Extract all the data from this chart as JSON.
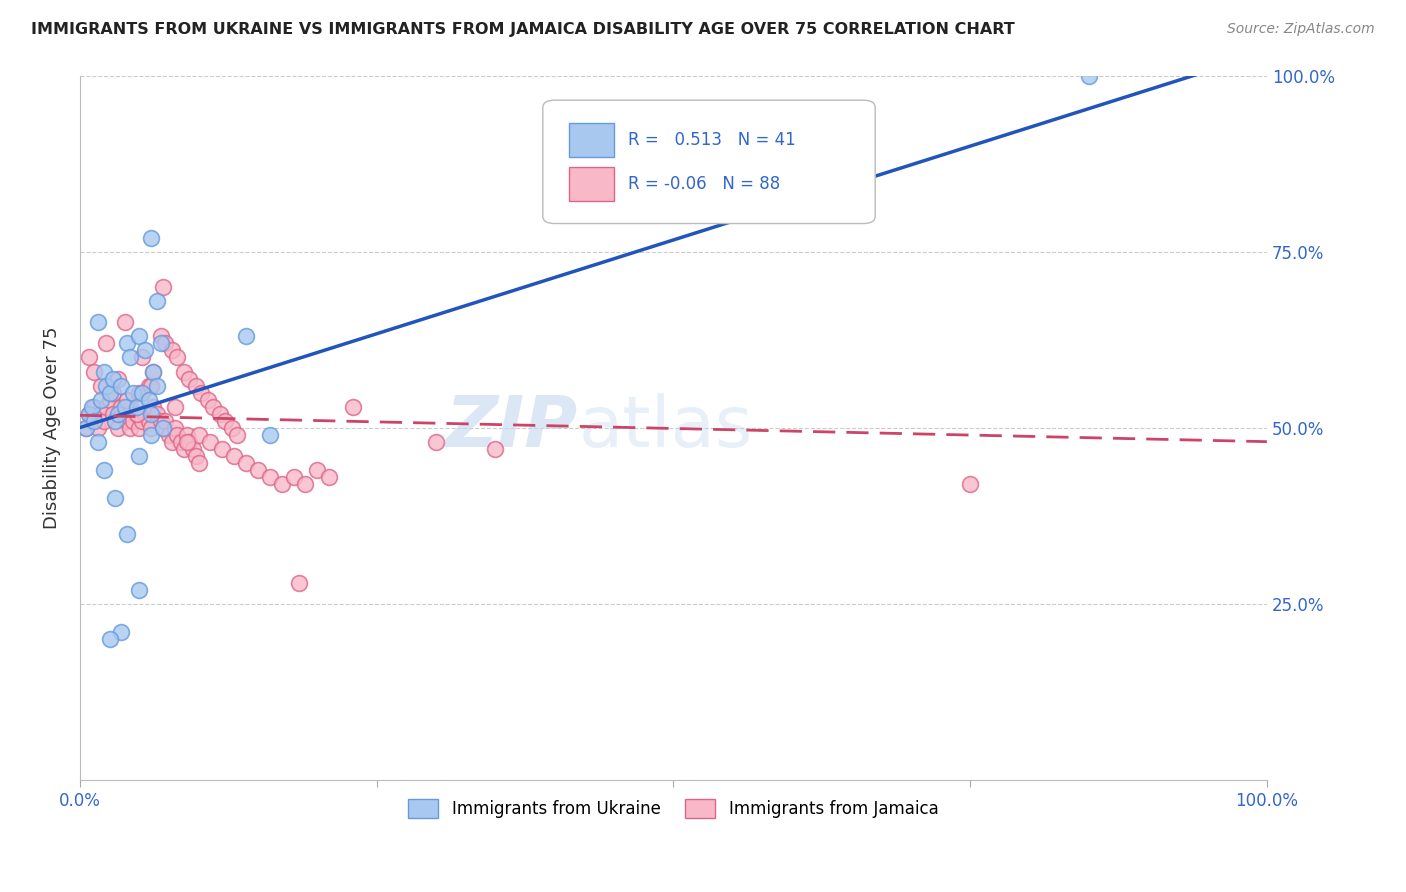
{
  "title": "IMMIGRANTS FROM UKRAINE VS IMMIGRANTS FROM JAMAICA DISABILITY AGE OVER 75 CORRELATION CHART",
  "source": "Source: ZipAtlas.com",
  "ylabel": "Disability Age Over 75",
  "xlim": [
    0,
    1.0
  ],
  "ylim": [
    0,
    1.0
  ],
  "ukraine_color": "#a8c8f0",
  "ukraine_edge_color": "#6699dd",
  "jamaica_color": "#f8b8c8",
  "jamaica_edge_color": "#dd6688",
  "ukraine_R": 0.513,
  "ukraine_N": 41,
  "jamaica_R": -0.06,
  "jamaica_N": 88,
  "ukraine_line_color": "#2255bb",
  "jamaica_line_color": "#cc4466",
  "watermark_color": "#d0e4f8",
  "ukraine_x": [
    0.005,
    0.008,
    0.01,
    0.012,
    0.015,
    0.018,
    0.02,
    0.022,
    0.025,
    0.028,
    0.03,
    0.032,
    0.035,
    0.038,
    0.04,
    0.042,
    0.045,
    0.048,
    0.05,
    0.052,
    0.055,
    0.058,
    0.06,
    0.062,
    0.065,
    0.068,
    0.02,
    0.03,
    0.04,
    0.05,
    0.06,
    0.14,
    0.16,
    0.05,
    0.035,
    0.025,
    0.015,
    0.06,
    0.065,
    0.07,
    0.85
  ],
  "ukraine_y": [
    0.5,
    0.52,
    0.53,
    0.51,
    0.65,
    0.54,
    0.58,
    0.56,
    0.55,
    0.57,
    0.51,
    0.52,
    0.56,
    0.53,
    0.62,
    0.6,
    0.55,
    0.53,
    0.63,
    0.55,
    0.61,
    0.54,
    0.52,
    0.58,
    0.56,
    0.62,
    0.44,
    0.4,
    0.35,
    0.46,
    0.49,
    0.63,
    0.49,
    0.27,
    0.21,
    0.2,
    0.48,
    0.77,
    0.68,
    0.5,
    1.0
  ],
  "jamaica_x": [
    0.005,
    0.008,
    0.01,
    0.012,
    0.015,
    0.018,
    0.02,
    0.022,
    0.025,
    0.028,
    0.03,
    0.032,
    0.035,
    0.038,
    0.04,
    0.042,
    0.045,
    0.048,
    0.05,
    0.052,
    0.055,
    0.058,
    0.06,
    0.062,
    0.065,
    0.068,
    0.07,
    0.072,
    0.075,
    0.078,
    0.08,
    0.082,
    0.085,
    0.088,
    0.09,
    0.092,
    0.095,
    0.098,
    0.1,
    0.11,
    0.12,
    0.13,
    0.14,
    0.15,
    0.16,
    0.17,
    0.18,
    0.19,
    0.2,
    0.21,
    0.008,
    0.012,
    0.018,
    0.022,
    0.028,
    0.032,
    0.038,
    0.042,
    0.048,
    0.052,
    0.058,
    0.062,
    0.068,
    0.072,
    0.078,
    0.082,
    0.088,
    0.092,
    0.098,
    0.102,
    0.108,
    0.112,
    0.118,
    0.122,
    0.128,
    0.132,
    0.185,
    0.23,
    0.3,
    0.35,
    0.04,
    0.05,
    0.06,
    0.07,
    0.08,
    0.09,
    0.1,
    0.75
  ],
  "jamaica_y": [
    0.5,
    0.52,
    0.51,
    0.53,
    0.5,
    0.52,
    0.51,
    0.53,
    0.54,
    0.52,
    0.51,
    0.5,
    0.53,
    0.52,
    0.51,
    0.5,
    0.51,
    0.52,
    0.5,
    0.51,
    0.52,
    0.51,
    0.5,
    0.53,
    0.52,
    0.51,
    0.5,
    0.51,
    0.49,
    0.48,
    0.5,
    0.49,
    0.48,
    0.47,
    0.49,
    0.48,
    0.47,
    0.46,
    0.49,
    0.48,
    0.47,
    0.46,
    0.45,
    0.44,
    0.43,
    0.42,
    0.43,
    0.42,
    0.44,
    0.43,
    0.6,
    0.58,
    0.56,
    0.62,
    0.55,
    0.57,
    0.65,
    0.53,
    0.52,
    0.6,
    0.56,
    0.58,
    0.63,
    0.62,
    0.61,
    0.6,
    0.58,
    0.57,
    0.56,
    0.55,
    0.54,
    0.53,
    0.52,
    0.51,
    0.5,
    0.49,
    0.28,
    0.53,
    0.48,
    0.47,
    0.54,
    0.55,
    0.56,
    0.7,
    0.53,
    0.48,
    0.45,
    0.42
  ]
}
